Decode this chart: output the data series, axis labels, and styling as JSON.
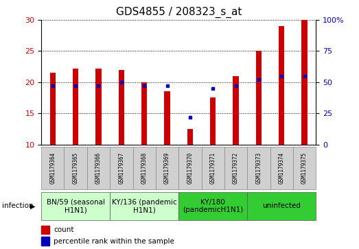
{
  "title": "GDS4855 / 208323_s_at",
  "samples": [
    "GSM1179364",
    "GSM1179365",
    "GSM1179366",
    "GSM1179367",
    "GSM1179368",
    "GSM1179369",
    "GSM1179370",
    "GSM1179371",
    "GSM1179372",
    "GSM1179373",
    "GSM1179374",
    "GSM1179375"
  ],
  "counts": [
    21.5,
    22.2,
    22.2,
    22.0,
    20.0,
    18.5,
    12.5,
    17.5,
    21.0,
    25.0,
    29.0,
    30.0
  ],
  "percentiles_pct": [
    47,
    47,
    47,
    50,
    47,
    47,
    22,
    45,
    47,
    52,
    55,
    55
  ],
  "ylim_left": [
    10,
    30
  ],
  "ylim_right": [
    0,
    100
  ],
  "yticks_left": [
    10,
    15,
    20,
    25,
    30
  ],
  "yticks_right": [
    0,
    25,
    50,
    75,
    100
  ],
  "bar_color": "#cc0000",
  "dot_color": "#0000bb",
  "bar_width": 0.25,
  "groups": [
    {
      "label": "BN/59 (seasonal\nH1N1)",
      "start": 0,
      "end": 3,
      "color": "#ccffcc"
    },
    {
      "label": "KY/136 (pandemic\nH1N1)",
      "start": 3,
      "end": 6,
      "color": "#ccffcc"
    },
    {
      "label": "KY/180\n(pandemicH1N1)",
      "start": 6,
      "end": 9,
      "color": "#33cc33"
    },
    {
      "label": "uninfected",
      "start": 9,
      "end": 12,
      "color": "#33cc33"
    }
  ],
  "infection_label": "infection",
  "legend_count_label": "count",
  "legend_percentile_label": "percentile rank within the sample",
  "left_label_color": "#cc0000",
  "right_label_color": "#0000bb",
  "title_fontsize": 11,
  "tick_fontsize": 8,
  "sample_fontsize": 5.5,
  "group_label_fontsize": 7.5,
  "legend_fontsize": 7.5
}
